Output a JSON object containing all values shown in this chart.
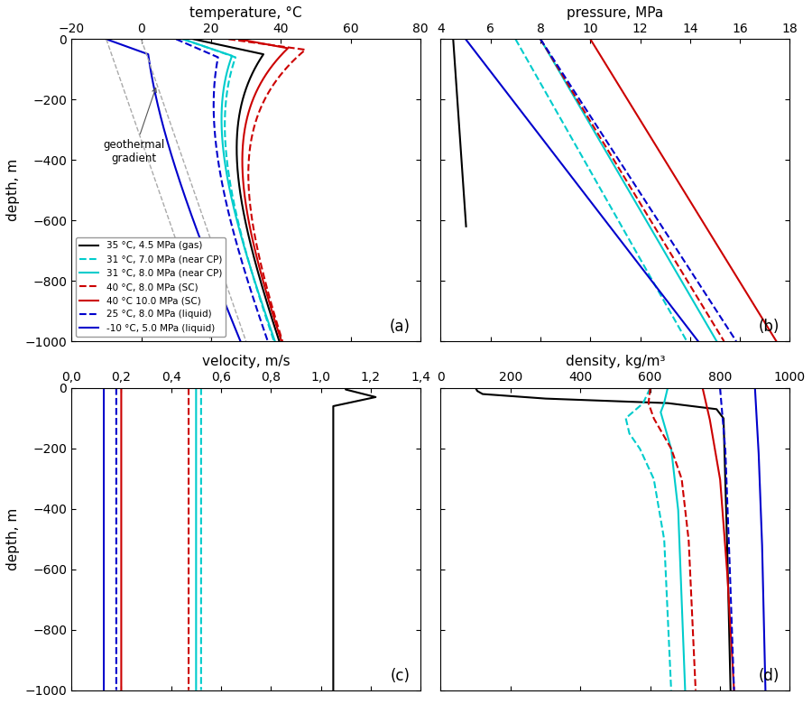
{
  "title_a": "temperature, °C",
  "title_b": "pressure, MPa",
  "title_c": "velocity, m/s",
  "title_d": "density, kg/m³",
  "ylabel": "depth, m",
  "panel_labels": [
    "(a)",
    "(b)",
    "(c)",
    "(d)"
  ],
  "scenarios": [
    {
      "label": "35 °C, 4.5 MPa (gas)",
      "color": "#000000",
      "ls": "-",
      "lw": 1.5
    },
    {
      "label": "31 °C, 7.0 MPa (near CP)",
      "color": "#00cccc",
      "ls": "--",
      "lw": 1.5
    },
    {
      "label": "31 °C, 8.0 MPa (near CP)",
      "color": "#00cccc",
      "ls": "-",
      "lw": 1.5
    },
    {
      "label": "40 °C, 8.0 MPa (SC)",
      "color": "#cc0000",
      "ls": "--",
      "lw": 1.5
    },
    {
      "label": "40 °C 10.0 MPa (SC)",
      "color": "#cc0000",
      "ls": "-",
      "lw": 1.5
    },
    {
      "label": "25 °C, 8.0 MPa (liquid)",
      "color": "#0000cc",
      "ls": "--",
      "lw": 1.5
    },
    {
      "label": "-10 °C, 5.0 MPa (liquid)",
      "color": "#0000cc",
      "ls": "-",
      "lw": 1.5
    }
  ],
  "xlim_a": [
    -20,
    80
  ],
  "xlim_b": [
    4,
    18
  ],
  "xlim_c": [
    0.0,
    1.4
  ],
  "xlim_d": [
    0,
    1000
  ],
  "yticks": [
    0,
    -200,
    -400,
    -600,
    -800,
    -1000
  ],
  "xticks_a": [
    -20,
    0,
    20,
    40,
    60,
    80
  ],
  "xticks_b": [
    4,
    6,
    8,
    10,
    12,
    14,
    16,
    18
  ],
  "xticks_c": [
    0.0,
    0.2,
    0.4,
    0.6,
    0.8,
    1.0,
    1.2,
    1.4
  ],
  "xticks_d": [
    0,
    200,
    400,
    600,
    800,
    1000
  ],
  "geo_T_surface": 10,
  "geo_grad": 0.03,
  "background": "#ffffff"
}
